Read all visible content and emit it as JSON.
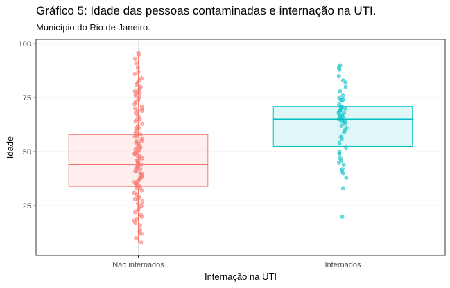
{
  "chart_data": {
    "type": "boxplot",
    "title": "Gráfico 5: Idade das pessoas contaminadas e internação na UTI.",
    "subtitle": "Município do Rio de Janeiro.",
    "xlabel": "Internação na UTI",
    "ylabel": "Idade",
    "ylim": [
      2,
      102
    ],
    "yticks": [
      25,
      50,
      75,
      100
    ],
    "grid": true,
    "legend": "none",
    "categories": [
      "Não internados",
      "Internados"
    ],
    "series": [
      {
        "category": "Não internados",
        "color": "#F8766D",
        "box": {
          "min": 8,
          "q1": 34,
          "median": 44,
          "q3": 58,
          "max": 95
        },
        "points": [
          96,
          95,
          93,
          91,
          89,
          87,
          86,
          84,
          83,
          82,
          81,
          80,
          79,
          78,
          78,
          77,
          77,
          76,
          75,
          74,
          73,
          72,
          71,
          70,
          70,
          69,
          69,
          68,
          67,
          66,
          65,
          65,
          64,
          63,
          62,
          61,
          61,
          60,
          59,
          58,
          58,
          57,
          57,
          56,
          55,
          55,
          54,
          54,
          53,
          52,
          52,
          51,
          51,
          50,
          50,
          49,
          49,
          48,
          48,
          47,
          47,
          46,
          46,
          45,
          45,
          44,
          44,
          43,
          43,
          42,
          42,
          41,
          41,
          40,
          40,
          39,
          39,
          38,
          38,
          37,
          37,
          36,
          36,
          35,
          35,
          34,
          34,
          33,
          33,
          32,
          31,
          30,
          29,
          28,
          28,
          27,
          26,
          25,
          24,
          23,
          22,
          21,
          20,
          19,
          18,
          17,
          16,
          14,
          13,
          12,
          10,
          8
        ]
      },
      {
        "category": "Internados",
        "color": "#00BFC4",
        "box": {
          "min": 33,
          "q1": 52.5,
          "median": 65,
          "q3": 71,
          "max": 89
        },
        "points": [
          90,
          89,
          88,
          85,
          83,
          82,
          80,
          78,
          76,
          75,
          74,
          74,
          72,
          71,
          71,
          70,
          70,
          69,
          69,
          68,
          68,
          67,
          67,
          66,
          66,
          65,
          65,
          64,
          64,
          63,
          62,
          61,
          60,
          59,
          57,
          56,
          54,
          52,
          50,
          49,
          47,
          46,
          45,
          44,
          42,
          41,
          40,
          38,
          33,
          20
        ]
      }
    ]
  }
}
